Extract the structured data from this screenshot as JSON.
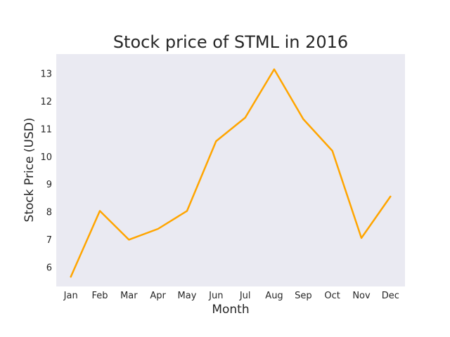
{
  "chart_data": {
    "type": "line",
    "title": "Stock price of STML in 2016",
    "xlabel": "Month",
    "ylabel": "Stock Price (USD)",
    "categories": [
      "Jan",
      "Feb",
      "Mar",
      "Apr",
      "May",
      "Jun",
      "Jul",
      "Aug",
      "Sep",
      "Oct",
      "Nov",
      "Dec"
    ],
    "series": [
      {
        "values": [
          5.65,
          8.03,
          6.99,
          7.38,
          8.03,
          10.55,
          11.4,
          13.15,
          11.35,
          10.2,
          7.05,
          8.55
        ]
      }
    ],
    "yticks": [
      6,
      7,
      8,
      9,
      10,
      11,
      12,
      13
    ],
    "ylim": [
      5.3,
      13.7
    ],
    "grid": false,
    "line_color": "#FFA500",
    "plot_background": "#EAEAF2"
  }
}
